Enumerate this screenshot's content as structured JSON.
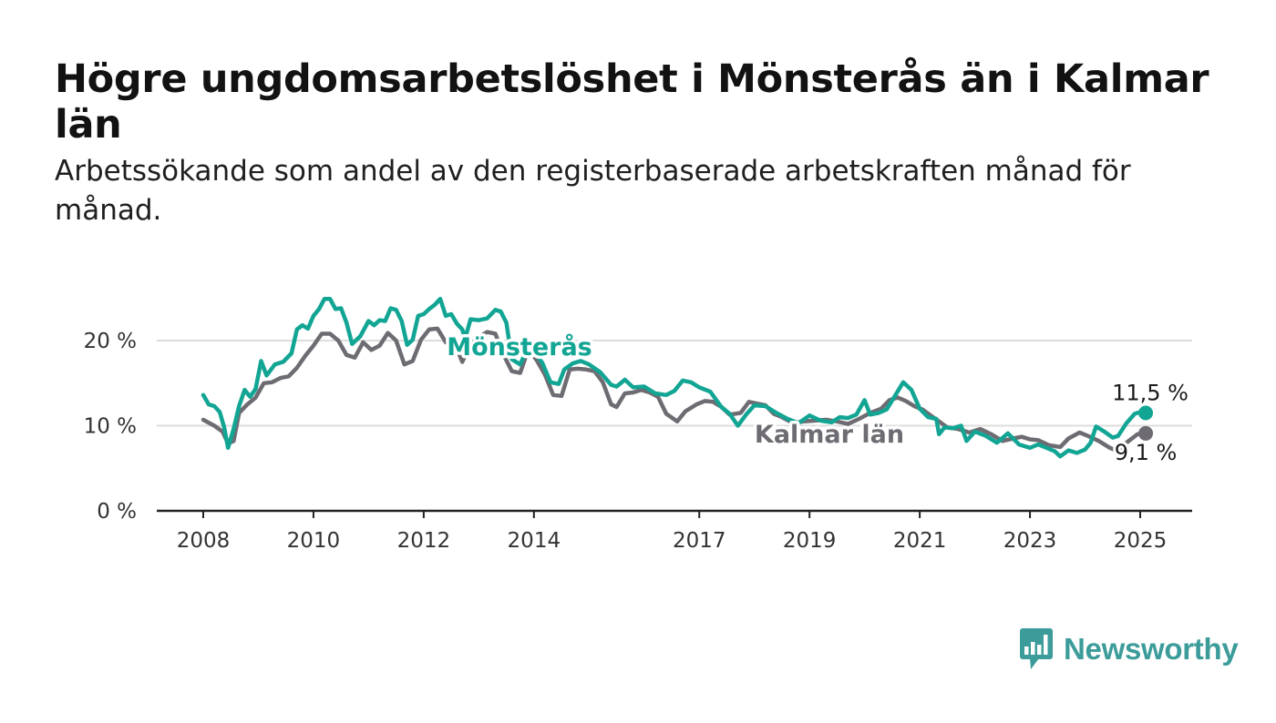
{
  "title": "Högre ungdomsarbetslöshet i Mönsterås än i Kalmar län",
  "subtitle": "Arbetssökande som andel av den registerbaserade arbetskraften månad för månad.",
  "logo": {
    "text": "Newsworthy",
    "icon": "bar-chart-speech-bubble-icon"
  },
  "colors": {
    "monsteras": "#12a594",
    "kalmar": "#6e6c72",
    "grid": "#dddddd",
    "axis": "#222222",
    "logo": "#3b9c9a"
  },
  "chart_data": {
    "type": "line",
    "title": "Högre ungdomsarbetslöshet i Mönsterås än i Kalmar län",
    "subtitle": "Arbetssökande som andel av den registerbaserade arbetskraften månad för månad.",
    "xlabel": "",
    "ylabel": "",
    "xlim": [
      2008,
      2025.6
    ],
    "ylim": [
      0,
      25
    ],
    "grid": "horizontal",
    "x_ticks": [
      2008,
      2010,
      2012,
      2014,
      2017,
      2019,
      2021,
      2023,
      2025
    ],
    "y_ticks": [
      0,
      10,
      20
    ],
    "y_tick_labels": [
      "0 %",
      "10 %",
      "20 %"
    ],
    "series": [
      {
        "name": "Mönsterås",
        "color": "#12a594",
        "end_label": "11,5 %",
        "points": [
          [
            2008.0,
            13.6
          ],
          [
            2008.1,
            12.5
          ],
          [
            2008.2,
            12.3
          ],
          [
            2008.3,
            11.6
          ],
          [
            2008.38,
            9.8
          ],
          [
            2008.45,
            7.4
          ],
          [
            2008.55,
            9.6
          ],
          [
            2008.65,
            12.3
          ],
          [
            2008.75,
            14.2
          ],
          [
            2008.85,
            13.4
          ],
          [
            2008.95,
            14.3
          ],
          [
            2009.05,
            17.6
          ],
          [
            2009.15,
            15.9
          ],
          [
            2009.3,
            17.2
          ],
          [
            2009.45,
            17.5
          ],
          [
            2009.6,
            18.5
          ],
          [
            2009.7,
            21.3
          ],
          [
            2009.8,
            21.8
          ],
          [
            2009.9,
            21.4
          ],
          [
            2010.0,
            22.9
          ],
          [
            2010.1,
            23.7
          ],
          [
            2010.2,
            24.9
          ],
          [
            2010.3,
            24.9
          ],
          [
            2010.4,
            23.7
          ],
          [
            2010.5,
            23.8
          ],
          [
            2010.6,
            22.1
          ],
          [
            2010.7,
            19.6
          ],
          [
            2010.85,
            20.5
          ],
          [
            2011.0,
            22.3
          ],
          [
            2011.1,
            21.8
          ],
          [
            2011.2,
            22.4
          ],
          [
            2011.3,
            22.3
          ],
          [
            2011.4,
            23.8
          ],
          [
            2011.5,
            23.6
          ],
          [
            2011.6,
            22.3
          ],
          [
            2011.7,
            19.5
          ],
          [
            2011.8,
            20.1
          ],
          [
            2011.9,
            22.9
          ],
          [
            2012.0,
            23.1
          ],
          [
            2012.1,
            23.7
          ],
          [
            2012.2,
            24.2
          ],
          [
            2012.3,
            24.9
          ],
          [
            2012.4,
            22.9
          ],
          [
            2012.5,
            23.1
          ],
          [
            2012.6,
            22.0
          ],
          [
            2012.7,
            21.3
          ],
          [
            2012.75,
            20.2
          ],
          [
            2012.85,
            22.5
          ],
          [
            2013.0,
            22.4
          ],
          [
            2013.15,
            22.6
          ],
          [
            2013.3,
            23.6
          ],
          [
            2013.4,
            23.4
          ],
          [
            2013.5,
            22.1
          ],
          [
            2013.6,
            17.8
          ],
          [
            2013.75,
            17.2
          ],
          [
            2013.9,
            19.3
          ],
          [
            2014.05,
            18.3
          ],
          [
            2014.15,
            17.4
          ],
          [
            2014.3,
            15.1
          ],
          [
            2014.45,
            14.9
          ],
          [
            2014.55,
            16.6
          ],
          [
            2014.7,
            17.3
          ],
          [
            2014.85,
            17.6
          ],
          [
            2015.0,
            17.2
          ],
          [
            2015.2,
            16.3
          ],
          [
            2015.4,
            14.8
          ],
          [
            2015.5,
            14.6
          ],
          [
            2015.65,
            15.4
          ],
          [
            2015.8,
            14.5
          ],
          [
            2016.0,
            14.6
          ],
          [
            2016.2,
            13.8
          ],
          [
            2016.4,
            13.6
          ],
          [
            2016.55,
            14.1
          ],
          [
            2016.7,
            15.3
          ],
          [
            2016.85,
            15.1
          ],
          [
            2017.0,
            14.5
          ],
          [
            2017.2,
            14.0
          ],
          [
            2017.4,
            12.2
          ],
          [
            2017.55,
            11.4
          ],
          [
            2017.7,
            10.0
          ],
          [
            2017.85,
            11.3
          ],
          [
            2018.0,
            12.4
          ],
          [
            2018.2,
            12.3
          ],
          [
            2018.4,
            11.5
          ],
          [
            2018.6,
            10.8
          ],
          [
            2018.8,
            10.3
          ],
          [
            2019.0,
            11.2
          ],
          [
            2019.2,
            10.6
          ],
          [
            2019.4,
            10.4
          ],
          [
            2019.55,
            11.0
          ],
          [
            2019.7,
            10.9
          ],
          [
            2019.85,
            11.3
          ],
          [
            2020.0,
            13.0
          ],
          [
            2020.1,
            11.3
          ],
          [
            2020.25,
            11.5
          ],
          [
            2020.4,
            11.9
          ],
          [
            2020.55,
            13.5
          ],
          [
            2020.7,
            15.1
          ],
          [
            2020.85,
            14.2
          ],
          [
            2021.0,
            12.0
          ],
          [
            2021.15,
            11.0
          ],
          [
            2021.3,
            10.8
          ],
          [
            2021.35,
            9.0
          ],
          [
            2021.45,
            9.8
          ],
          [
            2021.6,
            9.7
          ],
          [
            2021.75,
            10.0
          ],
          [
            2021.85,
            8.2
          ],
          [
            2022.0,
            9.3
          ],
          [
            2022.2,
            8.8
          ],
          [
            2022.4,
            8.0
          ],
          [
            2022.6,
            9.1
          ],
          [
            2022.8,
            7.8
          ],
          [
            2023.0,
            7.4
          ],
          [
            2023.15,
            7.8
          ],
          [
            2023.3,
            7.4
          ],
          [
            2023.45,
            7.0
          ],
          [
            2023.55,
            6.4
          ],
          [
            2023.7,
            7.1
          ],
          [
            2023.85,
            6.8
          ],
          [
            2024.0,
            7.2
          ],
          [
            2024.1,
            8.0
          ],
          [
            2024.2,
            9.9
          ],
          [
            2024.35,
            9.3
          ],
          [
            2024.5,
            8.6
          ],
          [
            2024.6,
            8.8
          ],
          [
            2024.75,
            10.3
          ],
          [
            2024.9,
            11.4
          ],
          [
            2025.05,
            11.7
          ],
          [
            2025.1,
            11.5
          ]
        ]
      },
      {
        "name": "Kalmar län",
        "color": "#6e6c72",
        "end_label": "9,1 %",
        "points": [
          [
            2008.0,
            10.7
          ],
          [
            2008.2,
            10.0
          ],
          [
            2008.35,
            9.3
          ],
          [
            2008.45,
            7.9
          ],
          [
            2008.55,
            8.2
          ],
          [
            2008.65,
            11.5
          ],
          [
            2008.8,
            12.5
          ],
          [
            2008.95,
            13.3
          ],
          [
            2009.1,
            15.0
          ],
          [
            2009.25,
            15.1
          ],
          [
            2009.4,
            15.6
          ],
          [
            2009.55,
            15.8
          ],
          [
            2009.7,
            16.8
          ],
          [
            2009.85,
            18.2
          ],
          [
            2010.0,
            19.4
          ],
          [
            2010.15,
            20.8
          ],
          [
            2010.3,
            20.8
          ],
          [
            2010.45,
            20.0
          ],
          [
            2010.6,
            18.3
          ],
          [
            2010.75,
            18.0
          ],
          [
            2010.9,
            19.8
          ],
          [
            2011.05,
            18.9
          ],
          [
            2011.2,
            19.4
          ],
          [
            2011.35,
            20.9
          ],
          [
            2011.5,
            20.0
          ],
          [
            2011.65,
            17.2
          ],
          [
            2011.8,
            17.6
          ],
          [
            2011.95,
            20.1
          ],
          [
            2012.1,
            21.3
          ],
          [
            2012.25,
            21.4
          ],
          [
            2012.4,
            19.8
          ],
          [
            2012.55,
            19.9
          ],
          [
            2012.7,
            17.5
          ],
          [
            2012.85,
            19.6
          ],
          [
            2013.0,
            20.4
          ],
          [
            2013.15,
            21.0
          ],
          [
            2013.3,
            20.8
          ],
          [
            2013.45,
            18.3
          ],
          [
            2013.6,
            16.4
          ],
          [
            2013.75,
            16.2
          ],
          [
            2013.9,
            19.0
          ],
          [
            2014.05,
            17.7
          ],
          [
            2014.2,
            16.0
          ],
          [
            2014.35,
            13.6
          ],
          [
            2014.5,
            13.5
          ],
          [
            2014.65,
            16.6
          ],
          [
            2014.8,
            16.7
          ],
          [
            2014.95,
            16.6
          ],
          [
            2015.1,
            16.4
          ],
          [
            2015.25,
            15.1
          ],
          [
            2015.4,
            12.5
          ],
          [
            2015.5,
            12.2
          ],
          [
            2015.65,
            13.8
          ],
          [
            2015.8,
            13.9
          ],
          [
            2015.95,
            14.2
          ],
          [
            2016.1,
            13.9
          ],
          [
            2016.25,
            13.4
          ],
          [
            2016.4,
            11.4
          ],
          [
            2016.6,
            10.5
          ],
          [
            2016.75,
            11.7
          ],
          [
            2016.95,
            12.5
          ],
          [
            2017.1,
            12.9
          ],
          [
            2017.25,
            12.8
          ],
          [
            2017.4,
            12.2
          ],
          [
            2017.55,
            11.3
          ],
          [
            2017.75,
            11.5
          ],
          [
            2017.9,
            12.8
          ],
          [
            2018.05,
            12.6
          ],
          [
            2018.2,
            12.4
          ],
          [
            2018.35,
            11.4
          ],
          [
            2018.5,
            11.0
          ],
          [
            2018.7,
            10.3
          ],
          [
            2018.9,
            10.5
          ],
          [
            2019.1,
            10.6
          ],
          [
            2019.3,
            10.7
          ],
          [
            2019.5,
            10.5
          ],
          [
            2019.7,
            10.2
          ],
          [
            2019.9,
            10.8
          ],
          [
            2020.1,
            11.5
          ],
          [
            2020.3,
            12.0
          ],
          [
            2020.45,
            13.0
          ],
          [
            2020.6,
            13.3
          ],
          [
            2020.75,
            12.9
          ],
          [
            2020.9,
            12.3
          ],
          [
            2021.05,
            11.9
          ],
          [
            2021.2,
            11.2
          ],
          [
            2021.35,
            10.5
          ],
          [
            2021.5,
            9.8
          ],
          [
            2021.7,
            9.6
          ],
          [
            2021.9,
            9.2
          ],
          [
            2022.1,
            9.6
          ],
          [
            2022.3,
            9.0
          ],
          [
            2022.5,
            8.2
          ],
          [
            2022.7,
            8.5
          ],
          [
            2022.85,
            8.7
          ],
          [
            2023.0,
            8.4
          ],
          [
            2023.15,
            8.3
          ],
          [
            2023.35,
            7.7
          ],
          [
            2023.55,
            7.5
          ],
          [
            2023.7,
            8.5
          ],
          [
            2023.9,
            9.2
          ],
          [
            2024.05,
            8.8
          ],
          [
            2024.25,
            8.2
          ],
          [
            2024.45,
            7.4
          ],
          [
            2024.6,
            7.0
          ],
          [
            2024.75,
            8.0
          ],
          [
            2024.95,
            9.0
          ],
          [
            2025.1,
            9.1
          ]
        ]
      }
    ]
  }
}
